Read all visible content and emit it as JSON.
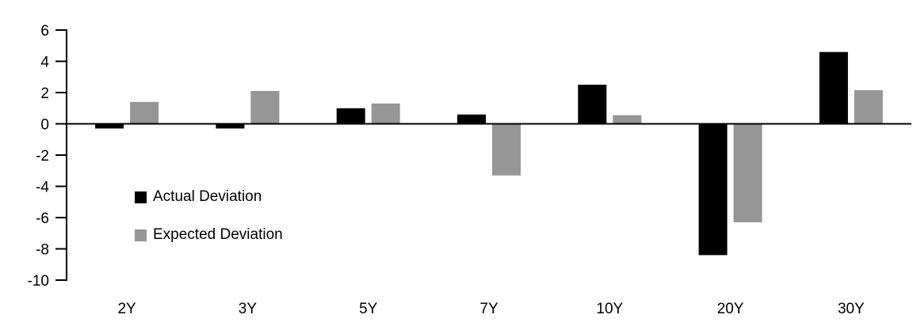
{
  "chart_data": {
    "type": "bar",
    "categories": [
      "2Y",
      "3Y",
      "5Y",
      "7Y",
      "10Y",
      "20Y",
      "30Y"
    ],
    "series": [
      {
        "name": "Actual Deviation",
        "color": "#000000",
        "values": [
          -0.3,
          -0.3,
          1.0,
          0.6,
          2.5,
          -8.4,
          4.6
        ]
      },
      {
        "name": "Expected Deviation",
        "color": "#969696",
        "values": [
          1.4,
          2.1,
          1.3,
          -3.3,
          0.55,
          -6.3,
          2.15
        ]
      }
    ],
    "title": "",
    "xlabel": "",
    "ylabel": "",
    "ylim": [
      -10,
      6
    ],
    "yticks": [
      6,
      4,
      2,
      0,
      -2,
      -4,
      -6,
      -8,
      -10
    ],
    "grid": false,
    "legend_position": "inside-left",
    "axis_color": "#000000",
    "background": "#ffffff"
  }
}
